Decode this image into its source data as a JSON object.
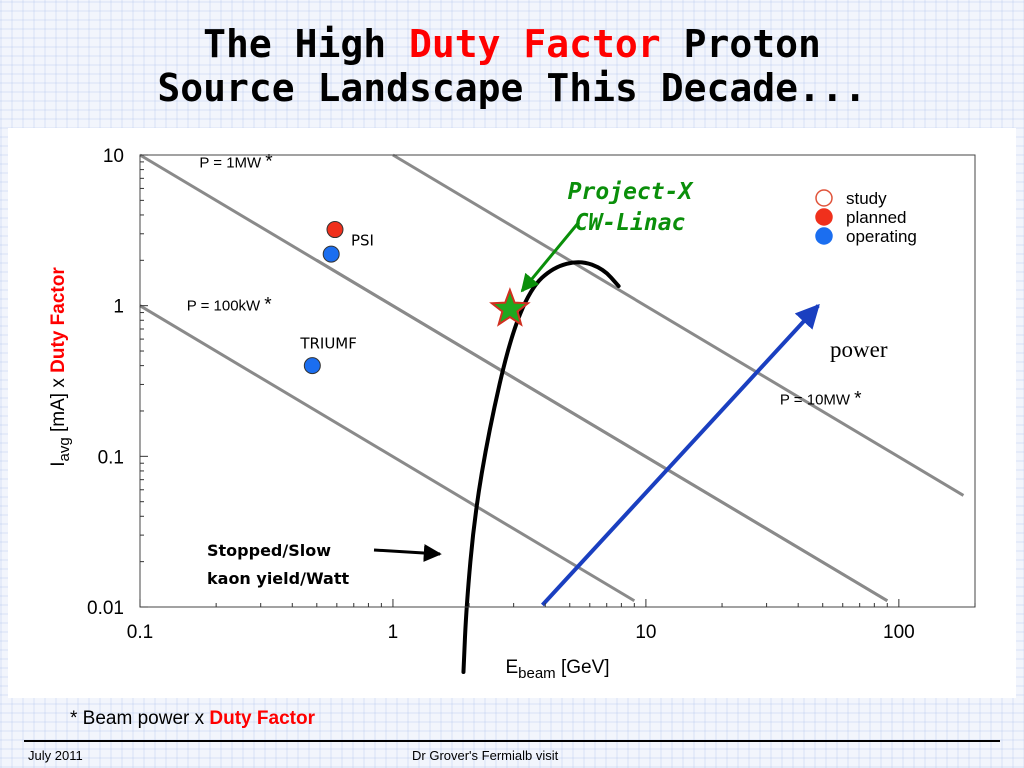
{
  "slide": {
    "title_line1_a": "The High ",
    "title_line1_hl": "Duty Factor",
    "title_line1_b": " Proton",
    "title_line2": "Source Landscape This Decade...",
    "footnote_a": "* Beam power x ",
    "footnote_hl": "Duty Factor",
    "footer_date": "July 2011",
    "footer_title": "Dr Grover's Fermialb visit",
    "colors": {
      "highlight": "#ff0000",
      "arrow_blue": "#1a3fc0",
      "star_green": "#1fa81f",
      "label_green": "#0a8f0a"
    }
  },
  "chart_data": {
    "type": "scatter",
    "xscale": "log",
    "yscale": "log",
    "xlim": [
      0.1,
      200
    ],
    "ylim": [
      0.01,
      10
    ],
    "xticks": [
      "0.1",
      "1",
      "10",
      "100"
    ],
    "yticks": [
      "10",
      "1",
      "0.1",
      "0.01"
    ],
    "xlabel_main": "E",
    "xlabel_sub": "beam",
    "xlabel_rest": " [GeV]",
    "ylabel_main": "I",
    "ylabel_sub": "avg",
    "ylabel_mid": " [mA] x ",
    "ylabel_hl": "Duty Factor",
    "legend": {
      "placement": "top-right",
      "entries": [
        {
          "label": "study",
          "color": "#ffffff",
          "stroke": "#e0533a"
        },
        {
          "label": "planned",
          "color": "#f0301c",
          "stroke": "#f0301c"
        },
        {
          "label": "operating",
          "color": "#1b6ef0",
          "stroke": "#1b6ef0"
        }
      ]
    },
    "power_lines": [
      {
        "label": "P = 1MW",
        "mark": "*",
        "x_start": 0.1,
        "y_start": 10,
        "x_end": 90,
        "y_end": 0.011
      },
      {
        "label": "P = 100kW",
        "mark": "*",
        "x_start": 0.1,
        "y_start": 1,
        "x_end": 9,
        "y_end": 0.011
      },
      {
        "label": "P = 10MW",
        "mark": "*",
        "x_start": 1,
        "y_start": 10,
        "x_end": 180,
        "y_end": 0.055
      },
      {
        "label": "",
        "mark": "",
        "x_start": 0.5,
        "y_start": 2,
        "x_end": 90,
        "y_end": 0.011
      }
    ],
    "points": [
      {
        "name": "PSI",
        "status": "planned",
        "x": 0.59,
        "y": 3.2,
        "color": "#f0301c"
      },
      {
        "name": "PSI",
        "status": "operating",
        "x": 0.57,
        "y": 2.2,
        "color": "#1b6ef0"
      },
      {
        "name": "TRIUMF",
        "status": "operating",
        "x": 0.48,
        "y": 0.4,
        "color": "#1b6ef0"
      }
    ],
    "labels": {
      "psi": "PSI",
      "triumf": "TRIUMF"
    },
    "star": {
      "x": 2.9,
      "y": 0.95,
      "color": "#1fa81f",
      "edge": "#d03020"
    },
    "project_x_line1": "Project-X",
    "project_x_line2": "CW-Linac",
    "power_label": "power",
    "stopped_line1": "Stopped/Slow",
    "stopped_line2": "kaon yield/Watt",
    "kaon_curve": [
      {
        "x": 1.9,
        "y": 0.0037
      },
      {
        "x": 1.95,
        "y": 0.01
      },
      {
        "x": 2.1,
        "y": 0.04
      },
      {
        "x": 2.4,
        "y": 0.15
      },
      {
        "x": 2.9,
        "y": 0.6
      },
      {
        "x": 3.5,
        "y": 1.3
      },
      {
        "x": 4.3,
        "y": 1.8
      },
      {
        "x": 5.5,
        "y": 2.0
      },
      {
        "x": 6.8,
        "y": 1.75
      },
      {
        "x": 7.8,
        "y": 1.35
      }
    ],
    "power_arrow": {
      "x1": 3.9,
      "y1": 0.01,
      "x2": 48,
      "y2": 1.0
    }
  }
}
